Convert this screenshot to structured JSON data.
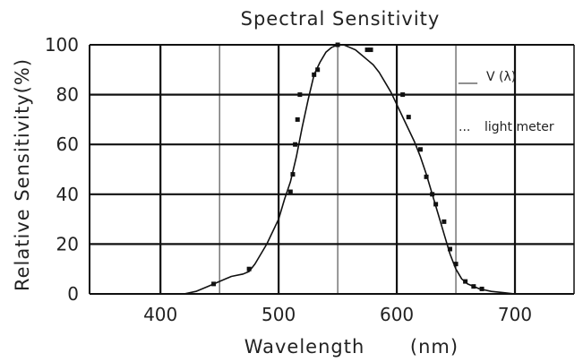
{
  "chart_data": {
    "type": "line",
    "title": "Spectral Sensitivity",
    "xlabel": "Wavelength",
    "xunit": "(nm)",
    "ylabel": "Relative Sensitivity(%)",
    "xlim": [
      340,
      750
    ],
    "ylim": [
      0,
      100
    ],
    "x_ticks": [
      400,
      500,
      600,
      700
    ],
    "y_ticks": [
      0,
      20,
      40,
      60,
      80,
      100
    ],
    "grid": true,
    "legend_position": "right",
    "legend": [
      {
        "symbol": "___",
        "label": "V (λ)"
      },
      {
        "symbol": "...",
        "label": "light meter"
      }
    ],
    "series": [
      {
        "style": "solid",
        "x": [
          420,
          430,
          440,
          450,
          460,
          470,
          475,
          480,
          490,
          500,
          505,
          510,
          515,
          520,
          525,
          530,
          535,
          540,
          545,
          550,
          555,
          560,
          565,
          570,
          575,
          580,
          585,
          590,
          595,
          600,
          605,
          610,
          615,
          620,
          625,
          630,
          635,
          640,
          645,
          650,
          655,
          660,
          670,
          680,
          690,
          700
        ],
        "y": [
          0,
          1,
          3,
          5,
          7,
          8,
          9,
          12,
          20,
          30,
          38,
          45,
          55,
          67,
          78,
          88,
          93,
          97,
          99,
          100,
          100,
          99,
          98,
          96,
          94,
          92,
          89,
          85,
          81,
          76,
          71,
          66,
          61,
          55,
          48,
          40,
          32,
          24,
          16,
          10,
          6,
          4,
          2,
          1,
          0.5,
          0
        ]
      },
      {
        "style": "dotted",
        "x": [
          445,
          475,
          510,
          512,
          514,
          516,
          518,
          530,
          533,
          550,
          575,
          578,
          605,
          610,
          620,
          625,
          630,
          633,
          640,
          645,
          650,
          658,
          665,
          672
        ],
        "y": [
          4,
          10,
          41,
          48,
          60,
          70,
          80,
          88,
          90,
          100,
          98,
          98,
          80,
          71,
          58,
          47,
          40,
          36,
          29,
          18,
          12,
          5,
          3,
          2
        ]
      }
    ]
  }
}
